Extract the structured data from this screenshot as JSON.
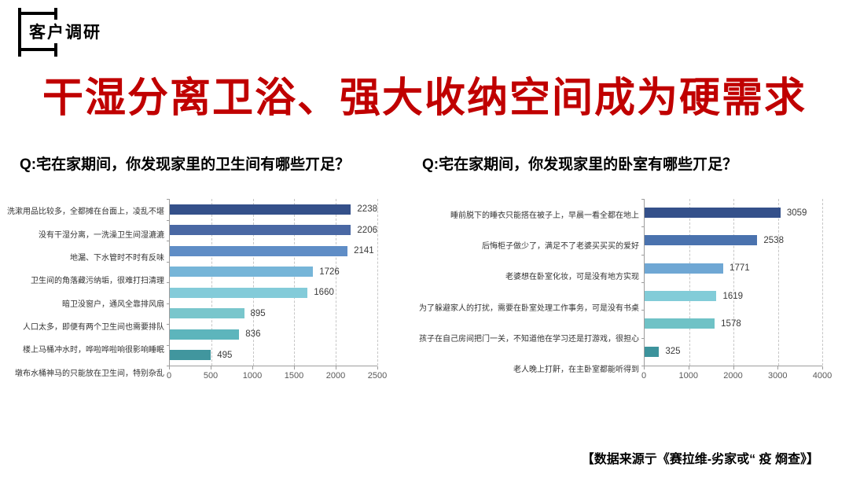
{
  "badge": {
    "label": "客户调研"
  },
  "title": {
    "text": "干湿分离卫浴、强大收纳空间成为硬需求",
    "color": "#c00000"
  },
  "source_note": "【数据来源亍《赛拉维-劣家戓“ 疫 烱查》】",
  "chart_data": [
    {
      "type": "bar",
      "orientation": "horizontal",
      "title": "Q:宅在家期间，你发现家里的卫生间有哪些丌足？",
      "categories": [
        "洗漱用品比较多，全都摊在台面上，凌乱不堪",
        "没有干湿分离，一洗澡卫生间湿漉漉",
        "地漏、下水管时不时有反味",
        "卫生间的角落藏污纳垢，很难打扫清理",
        "暗卫没窗户，通风全靠排风扇",
        "人口太多，即便有两个卫生间也需要排队",
        "楼上马桶冲水时，哗啦哗啦响很影响睡眠",
        "墩布水桶神马的只能放在卫生间，特别杂乱"
      ],
      "values": [
        2238,
        2206,
        2141,
        1726,
        1660,
        895,
        836,
        495
      ],
      "bar_colors": [
        "#34508a",
        "#4a68a4",
        "#5f8dc6",
        "#76b5d8",
        "#83cbd9",
        "#79c6cc",
        "#5db5bc",
        "#41969e"
      ],
      "xlim": [
        0,
        2500
      ],
      "xticks": [
        0,
        500,
        1000,
        1500,
        2000,
        2500
      ],
      "grid": "vertical-dashed",
      "value_labels": true,
      "legend": "none"
    },
    {
      "type": "bar",
      "orientation": "horizontal",
      "title": "Q:宅在家期间，你发现家里的卧室有哪些丌足？",
      "categories": [
        "睡前脱下的睡衣只能搭在被子上，早晨一看全都在地上",
        "后悔柜子做少了，满足不了老婆买买买的爱好",
        "老婆想在卧室化妆，可是没有地方实现",
        "为了躲避家人的打扰，需要在卧室处理工作事务，可是没有书桌",
        "孩子在自己房间把门一关，不知道他在学习还是打游戏，很担心",
        "老人晚上打鼾，在主卧室都能听得到"
      ],
      "values": [
        3059,
        2538,
        1771,
        1619,
        1578,
        325
      ],
      "bar_colors": [
        "#34508a",
        "#4a72ae",
        "#6fa7d4",
        "#82ccd8",
        "#6fc2c6",
        "#3c939c"
      ],
      "xlim": [
        0,
        4000
      ],
      "xticks": [
        0,
        1000,
        2000,
        3000,
        4000
      ],
      "grid": "vertical-dashed",
      "value_labels": true,
      "legend": "none"
    }
  ]
}
